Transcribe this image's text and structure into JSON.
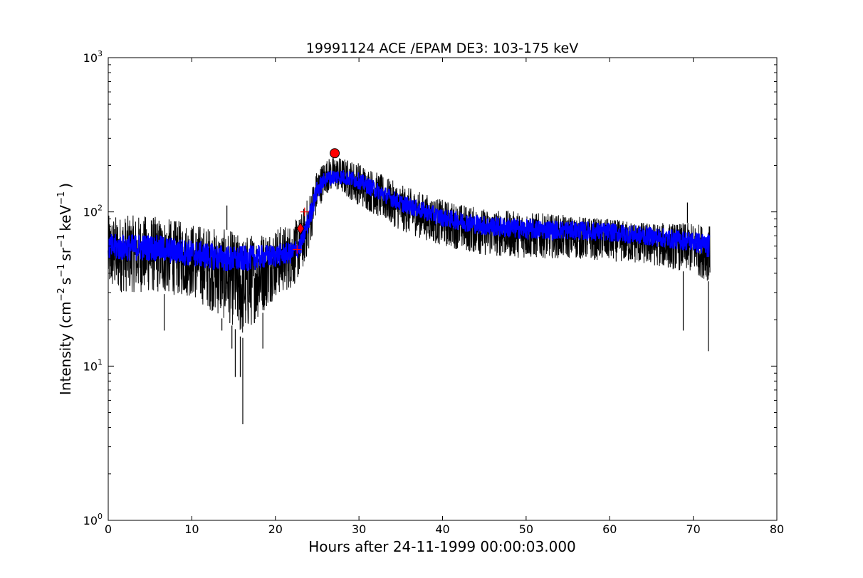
{
  "chart_data": {
    "type": "line",
    "title": "19991124 ACE /EPAM DE3: 103-175 keV",
    "xlabel": "Hours after 24-11-1999 00:00:03.000",
    "ylabel": {
      "prefix": "Intensity (cm",
      "exp1": "−2",
      "part2": "s",
      "exp2": "−1",
      "part3": "sr",
      "exp3": "−1",
      "part4": "keV",
      "exp4": "−1",
      "suffix": ")"
    },
    "xlim": [
      0,
      80
    ],
    "ylim": [
      1,
      1000
    ],
    "yscale": "log",
    "grid": false,
    "x_ticks": [
      {
        "value": 0,
        "label": "0"
      },
      {
        "value": 10,
        "label": "10"
      },
      {
        "value": 20,
        "label": "20"
      },
      {
        "value": 30,
        "label": "30"
      },
      {
        "value": 40,
        "label": "40"
      },
      {
        "value": 50,
        "label": "50"
      },
      {
        "value": 60,
        "label": "60"
      },
      {
        "value": 70,
        "label": "70"
      },
      {
        "value": 80,
        "label": "80"
      }
    ],
    "y_ticks": [
      {
        "value": 1,
        "base": "10",
        "exp": "0"
      },
      {
        "value": 10,
        "base": "10",
        "exp": "1"
      },
      {
        "value": 100,
        "base": "10",
        "exp": "2"
      },
      {
        "value": 1000,
        "base": "10",
        "exp": "3"
      }
    ],
    "series": [
      {
        "name": "",
        "color": "#000000",
        "kind": "raw",
        "envelope": {
          "x": [
            0,
            5,
            10,
            15,
            16,
            20,
            22,
            23,
            24,
            25,
            26,
            27,
            28,
            30,
            35,
            40,
            45,
            50,
            55,
            60,
            65,
            70,
            72
          ],
          "low": [
            30,
            30,
            28,
            18,
            15,
            28,
            32,
            38,
            55,
            100,
            130,
            140,
            130,
            110,
            75,
            60,
            52,
            50,
            50,
            48,
            45,
            40,
            35
          ],
          "high": [
            95,
            95,
            85,
            75,
            70,
            80,
            85,
            95,
            130,
            190,
            220,
            230,
            225,
            210,
            150,
            120,
            105,
            100,
            95,
            90,
            85,
            85,
            82
          ]
        },
        "spikes_down": [
          {
            "x": 15.2,
            "y": 8.5
          },
          {
            "x": 15.8,
            "y": 8.5
          },
          {
            "x": 16.1,
            "y": 4.2
          },
          {
            "x": 6.7,
            "y": 17
          },
          {
            "x": 18.5,
            "y": 13
          },
          {
            "x": 68.8,
            "y": 17
          },
          {
            "x": 71.8,
            "y": 12.5
          },
          {
            "x": 13.6,
            "y": 17
          },
          {
            "x": 14.8,
            "y": 13
          }
        ],
        "spikes_up": [
          {
            "x": 14.2,
            "y": 110
          },
          {
            "x": 69.3,
            "y": 115
          }
        ]
      },
      {
        "name": "",
        "color": "#0000ff",
        "kind": "smoothed",
        "envelope": {
          "x": [
            0,
            5,
            10,
            15,
            20,
            22,
            23,
            24,
            25,
            26,
            27,
            28,
            30,
            35,
            40,
            45,
            50,
            55,
            60,
            65,
            70,
            72
          ],
          "low": [
            48,
            48,
            44,
            40,
            44,
            46,
            52,
            75,
            120,
            145,
            150,
            150,
            140,
            100,
            80,
            70,
            66,
            66,
            64,
            60,
            55,
            50
          ],
          "high": [
            72,
            72,
            66,
            60,
            62,
            64,
            70,
            105,
            160,
            185,
            190,
            190,
            180,
            130,
            105,
            95,
            90,
            88,
            85,
            80,
            75,
            72
          ]
        }
      }
    ],
    "markers": [
      {
        "kind": "circle",
        "x": 27.1,
        "y": 240,
        "color": "#ff0000"
      },
      {
        "kind": "diamond",
        "x": 23.0,
        "y": 78,
        "color": "#ff0000"
      },
      {
        "kind": "plus",
        "x": 22.6,
        "y": 57,
        "color": "#ff0000"
      },
      {
        "kind": "plus",
        "x": 23.5,
        "y": 100,
        "color": "#ff0000"
      }
    ]
  }
}
